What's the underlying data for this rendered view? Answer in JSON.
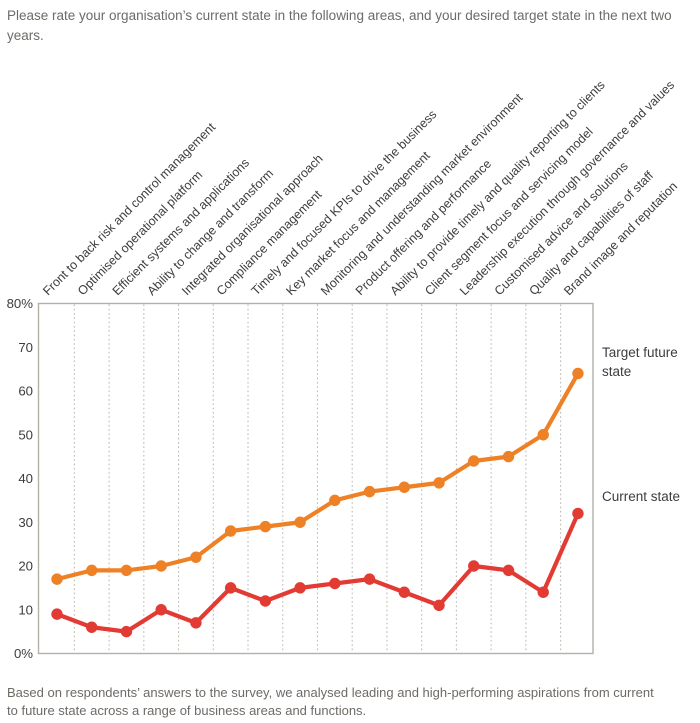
{
  "title": "Please rate your organisation’s current state in the following areas, and your desired target state in the next two years.",
  "footer": "Based on respondents’ answers to the survey, we analysed leading and high-performing aspirations from current to future state across a range of business areas and functions.",
  "legend": {
    "target": "Target future state",
    "current": "Current state"
  },
  "colors": {
    "target": "#ee8125",
    "current": "#e23b33",
    "grid": "#beb9b1",
    "axis": "#b4afa8",
    "text_dark": "#3d3d3d",
    "text_muted": "#6e6a66"
  },
  "chart_data": {
    "type": "line",
    "title": "Please rate your organisation’s current state in the following areas, and your desired target state in the next two years.",
    "categories": [
      "Front to back risk and control management",
      "Optimised operational platform",
      "Efficient systems and applications",
      "Ability to change and transform",
      "Integrated organisational approach",
      "Compliance management",
      "Timely and focused KPIs to drive the business",
      "Key market focus and management",
      "Monitoring and understanding market environment",
      "Product offering and performance",
      "Ability to provide timely and quality reporting to clients",
      "Client segment focus and servicing model",
      "Leadership execution through governance and values",
      "Customised advice and solutions",
      "Quality and capabilities of staff",
      "Brand image and reputation"
    ],
    "series": [
      {
        "name": "Target future state",
        "color_key": "target",
        "values": [
          17,
          19,
          19,
          20,
          22,
          28,
          29,
          30,
          35,
          37,
          38,
          39,
          44,
          45,
          50,
          64
        ]
      },
      {
        "name": "Current state",
        "color_key": "current",
        "values": [
          9,
          6,
          5,
          10,
          7,
          15,
          12,
          15,
          16,
          17,
          14,
          11,
          20,
          19,
          14,
          32
        ]
      }
    ],
    "y_axis": {
      "min": 0,
      "max": 80,
      "ticks": [
        {
          "label": "80%",
          "value": 80
        },
        {
          "label": "70",
          "value": 70
        },
        {
          "label": "60",
          "value": 60
        },
        {
          "label": "50",
          "value": 50
        },
        {
          "label": "40",
          "value": 40
        },
        {
          "label": "30",
          "value": 30
        },
        {
          "label": "20",
          "value": 20
        },
        {
          "label": "10",
          "value": 10
        },
        {
          "label": "0%",
          "value": 0
        }
      ]
    },
    "grid": "vertical-dotted",
    "legend_position": "right"
  }
}
